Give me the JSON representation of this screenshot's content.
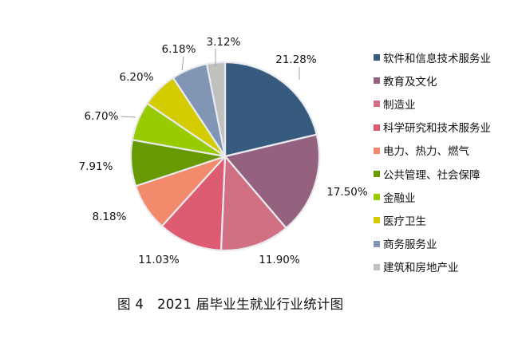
{
  "caption": "图 4　2021 届毕业生就业行业统计图",
  "chart_data": {
    "type": "pie",
    "title": "图 4　2021 届毕业生就业行业统计图",
    "start_angle_deg": 0,
    "direction": "clockwise",
    "legend_position": "right",
    "categories": [
      "软件和信息技术服务业",
      "教育及文化",
      "制造业",
      "科学研究和技术服务业",
      "电力、热力、燃气",
      "公共管理、社会保障",
      "金融业",
      "医疗卫生",
      "商务服务业",
      "建筑和房地产业"
    ],
    "values": [
      21.28,
      17.5,
      11.9,
      11.03,
      8.18,
      7.91,
      6.7,
      6.2,
      6.18,
      3.12
    ],
    "labels": [
      "21.28%",
      "17.50%",
      "11.90%",
      "11.03%",
      "8.18%",
      "7.91%",
      "6.70%",
      "6.20%",
      "6.18%",
      "3.12%"
    ],
    "colors": [
      "#375a7f",
      "#94627e",
      "#d16f83",
      "#de5c72",
      "#f48a6c",
      "#669a00",
      "#99cc00",
      "#d4cc00",
      "#8196b4",
      "#c0c0c0"
    ]
  },
  "legend": {
    "items": [
      {
        "label": "软件和信息技术服务业",
        "color": "#375a7f"
      },
      {
        "label": "教育及文化",
        "color": "#94627e"
      },
      {
        "label": "制造业",
        "color": "#d16f83"
      },
      {
        "label": "科学研究和技术服务业",
        "color": "#de5c72"
      },
      {
        "label": "电力、热力、燃气",
        "color": "#f48a6c"
      },
      {
        "label": "公共管理、社会保障",
        "color": "#669a00"
      },
      {
        "label": "金融业",
        "color": "#99cc00"
      },
      {
        "label": "医疗卫生",
        "color": "#d4cc00"
      },
      {
        "label": "商务服务业",
        "color": "#8196b4"
      },
      {
        "label": "建筑和房地产业",
        "color": "#c0c0c0"
      }
    ]
  }
}
